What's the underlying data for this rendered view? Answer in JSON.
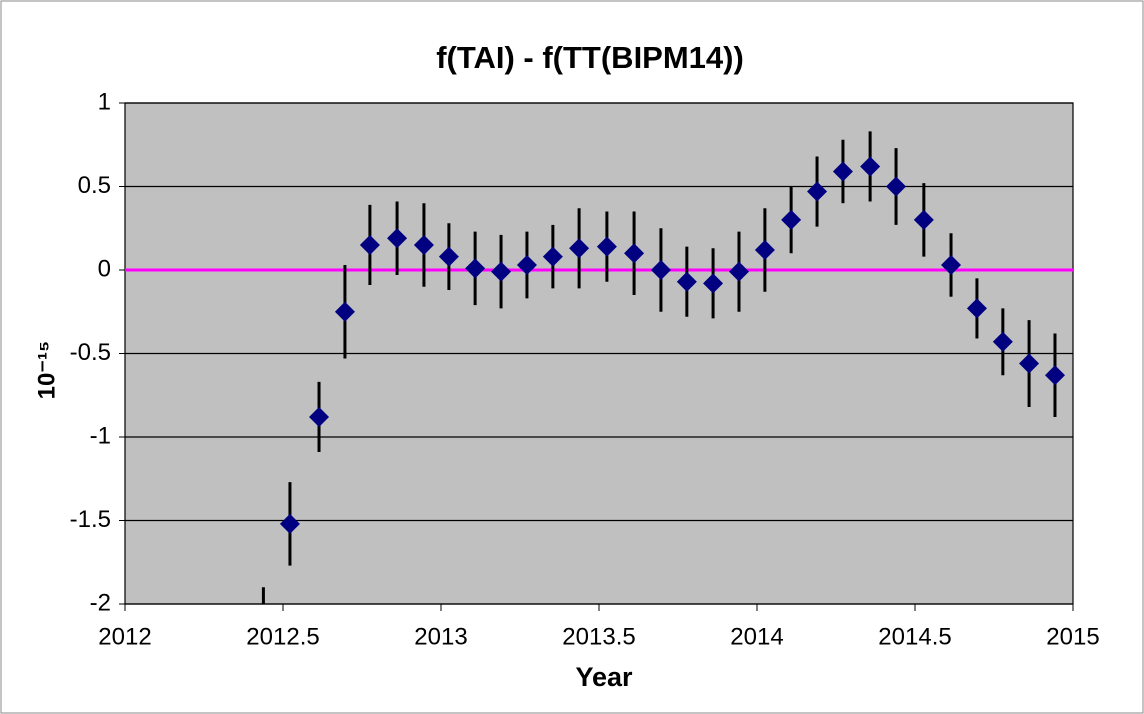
{
  "chart_data": {
    "type": "scatter",
    "title": "f(TAI)  - f(TT(BIPM14))",
    "xlabel": "Year",
    "ylabel": "10⁻¹⁵",
    "x": [
      2012.438,
      2012.522,
      2012.614,
      2012.696,
      2012.775,
      2012.861,
      2012.946,
      2013.025,
      2013.108,
      2013.19,
      2013.272,
      2013.354,
      2013.437,
      2013.525,
      2013.611,
      2013.696,
      2013.778,
      2013.861,
      2013.943,
      2014.025,
      2014.108,
      2014.19,
      2014.272,
      2014.358,
      2014.44,
      2014.528,
      2014.614,
      2014.696,
      2014.778,
      2014.861,
      2014.943
    ],
    "values": [
      -2.15,
      -1.52,
      -0.88,
      -0.25,
      0.15,
      0.19,
      0.15,
      0.08,
      0.01,
      -0.01,
      0.03,
      0.08,
      0.13,
      0.14,
      0.1,
      0.0,
      -0.07,
      -0.08,
      -0.01,
      0.12,
      0.3,
      0.47,
      0.59,
      0.62,
      0.5,
      0.3,
      0.03,
      -0.23,
      -0.43,
      -0.56,
      -0.63
    ],
    "errors": [
      0.25,
      0.25,
      0.21,
      0.28,
      0.24,
      0.22,
      0.25,
      0.2,
      0.22,
      0.22,
      0.2,
      0.19,
      0.24,
      0.21,
      0.25,
      0.25,
      0.21,
      0.21,
      0.24,
      0.25,
      0.2,
      0.21,
      0.19,
      0.21,
      0.23,
      0.22,
      0.19,
      0.18,
      0.2,
      0.26,
      0.25
    ],
    "color": "#000080",
    "error_color": "#000000",
    "xlim": [
      2012,
      2015
    ],
    "xticks": [
      2012,
      2012.5,
      2013,
      2013.5,
      2014,
      2014.5,
      2015
    ],
    "ylim": [
      -2,
      1
    ],
    "yticks": [
      -2,
      -1.5,
      -1,
      -0.5,
      0,
      0.5,
      1
    ],
    "grid": true,
    "reference_line": {
      "value": 0,
      "color": "#ff00ff"
    }
  }
}
